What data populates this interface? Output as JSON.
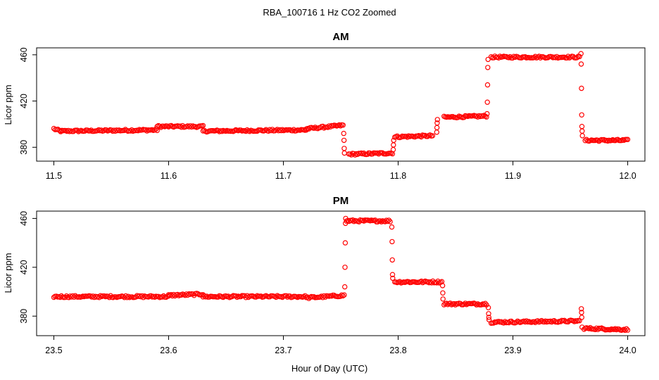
{
  "figure": {
    "title": "RBA_100716  1 Hz CO2 Zoomed",
    "xlabel": "Hour of Day (UTC)",
    "series_color": "#ff0000"
  },
  "chart_data": [
    {
      "type": "scatter",
      "title": "AM",
      "xlabel": "Hour of Day (UTC)",
      "ylabel": "Licor ppm",
      "xlim": [
        11.485,
        12.015
      ],
      "ylim": [
        368,
        466
      ],
      "xticks": [
        "11.5",
        "11.6",
        "11.7",
        "11.8",
        "11.9",
        "12.0"
      ],
      "xtick_values": [
        11.5,
        11.6,
        11.7,
        11.8,
        11.9,
        12.0
      ],
      "yticks": [
        "380",
        "420",
        "460"
      ],
      "ytick_values": [
        380,
        420,
        460
      ],
      "marker": "open-circle",
      "segments": [
        {
          "x": [
            11.5,
            11.506
          ],
          "y": [
            396,
            394
          ]
        },
        {
          "x": [
            11.506,
            11.59
          ],
          "y": [
            394,
            395
          ]
        },
        {
          "x": [
            11.59,
            11.63
          ],
          "y": [
            398,
            398
          ]
        },
        {
          "x": [
            11.63,
            11.72
          ],
          "y": [
            394,
            395
          ]
        },
        {
          "x": [
            11.72,
            11.752
          ],
          "y": [
            396,
            399
          ]
        },
        {
          "x": [
            11.757,
            11.795
          ],
          "y": [
            374,
            375
          ]
        },
        {
          "x": [
            11.797,
            11.83
          ],
          "y": [
            389,
            390
          ]
        },
        {
          "x": [
            11.84,
            11.877
          ],
          "y": [
            406,
            407
          ]
        },
        {
          "x": [
            11.881,
            11.958
          ],
          "y": [
            458,
            458
          ]
        },
        {
          "x": [
            11.963,
            12.0
          ],
          "y": [
            386,
            386
          ]
        }
      ],
      "transitions": [
        {
          "x": 11.753,
          "y": [
            392,
            386,
            379,
            375
          ]
        },
        {
          "x": 11.796,
          "y": [
            378,
            382,
            386
          ]
        },
        {
          "x": 11.834,
          "y": [
            393,
            397,
            401,
            404
          ]
        },
        {
          "x": 11.878,
          "y": [
            409,
            419,
            434,
            449,
            456
          ]
        },
        {
          "x": 11.96,
          "y": [
            461,
            452,
            431,
            408,
            398,
            394,
            390
          ]
        }
      ]
    },
    {
      "type": "scatter",
      "title": "PM",
      "xlabel": "Hour of Day (UTC)",
      "ylabel": "Licor ppm",
      "xlim": [
        23.485,
        24.015
      ],
      "ylim": [
        364,
        466
      ],
      "xticks": [
        "23.5",
        "23.6",
        "23.7",
        "23.8",
        "23.9",
        "24.0"
      ],
      "xtick_values": [
        23.5,
        23.6,
        23.7,
        23.8,
        23.9,
        24.0
      ],
      "yticks": [
        "380",
        "420",
        "460"
      ],
      "ytick_values": [
        380,
        420,
        460
      ],
      "marker": "open-circle",
      "segments": [
        {
          "x": [
            23.5,
            23.6
          ],
          "y": [
            396,
            396
          ]
        },
        {
          "x": [
            23.6,
            23.63
          ],
          "y": [
            397,
            398
          ]
        },
        {
          "x": [
            23.63,
            23.72
          ],
          "y": [
            396,
            396
          ]
        },
        {
          "x": [
            23.72,
            23.753
          ],
          "y": [
            395,
            397
          ]
        },
        {
          "x": [
            23.755,
            23.793
          ],
          "y": [
            458,
            458
          ]
        },
        {
          "x": [
            23.797,
            23.838
          ],
          "y": [
            408,
            408
          ]
        },
        {
          "x": [
            23.84,
            23.877
          ],
          "y": [
            390,
            390
          ]
        },
        {
          "x": [
            23.881,
            23.958
          ],
          "y": [
            375,
            376
          ]
        },
        {
          "x": [
            23.962,
            24.0
          ],
          "y": [
            370,
            369
          ]
        }
      ],
      "transitions": [
        {
          "x": 23.754,
          "y": [
            404,
            420,
            440,
            456,
            460
          ]
        },
        {
          "x": 23.795,
          "y": [
            453,
            441,
            426,
            414,
            411
          ]
        },
        {
          "x": 23.839,
          "y": [
            405,
            399,
            394
          ]
        },
        {
          "x": 23.879,
          "y": [
            387,
            382,
            379,
            377
          ]
        },
        {
          "x": 23.96,
          "y": [
            386,
            383,
            379,
            371
          ]
        }
      ]
    }
  ]
}
